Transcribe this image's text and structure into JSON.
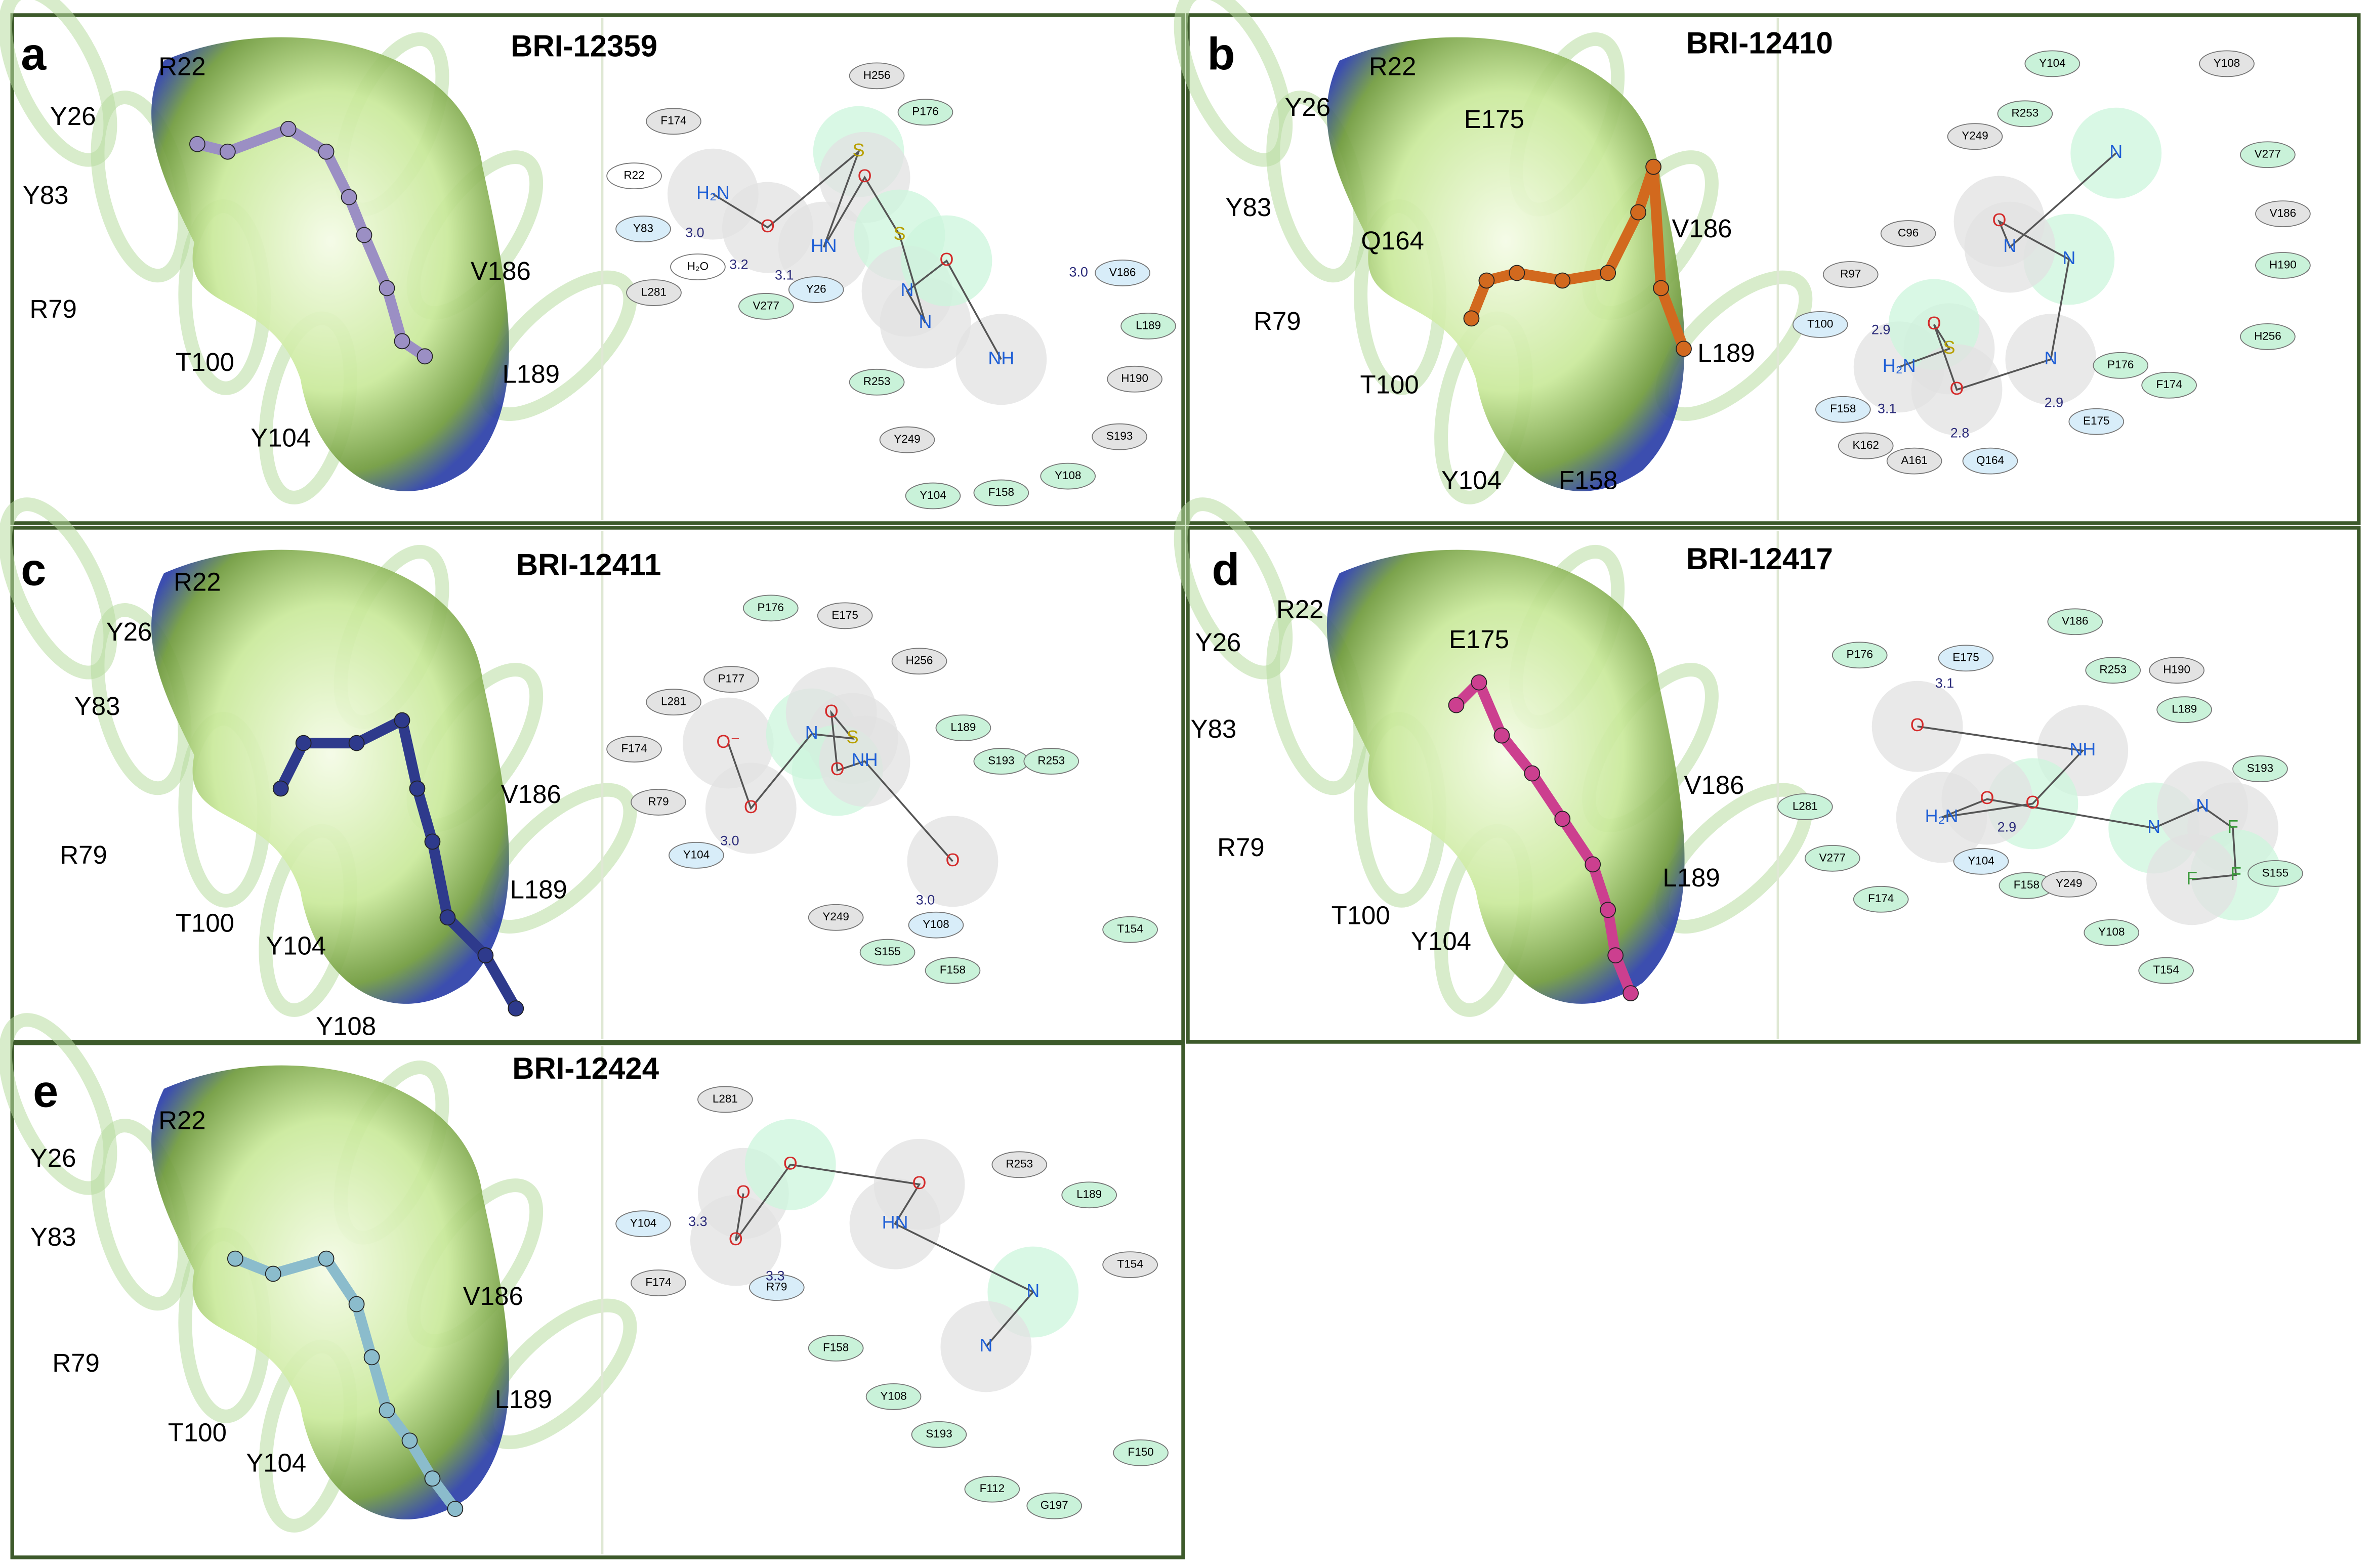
{
  "panels": [
    {
      "letter": "a",
      "title": "BRI-12359",
      "residues_3d": [
        "R22",
        "Y26",
        "Y83",
        "R79",
        "T100",
        "Y104",
        "V186",
        "L189"
      ],
      "residues_2d": [
        {
          "label": "H256",
          "color": "#e3e3e3"
        },
        {
          "label": "P176",
          "color": "#c9f2d9"
        },
        {
          "label": "F174",
          "color": "#e3e3e3"
        },
        {
          "label": "R22",
          "color": "#ffffff"
        },
        {
          "label": "Y83",
          "color": "#d8edf9"
        },
        {
          "label": "H₂O",
          "color": "#ffffff"
        },
        {
          "label": "Y26",
          "color": "#d8edf9"
        },
        {
          "label": "V277",
          "color": "#c9f2d9"
        },
        {
          "label": "L281",
          "color": "#e3e3e3"
        },
        {
          "label": "V186",
          "color": "#d8edf9"
        },
        {
          "label": "L189",
          "color": "#c9f2d9"
        },
        {
          "label": "H190",
          "color": "#e3e3e3"
        },
        {
          "label": "R253",
          "color": "#c9f2d9"
        },
        {
          "label": "Y249",
          "color": "#e3e3e3"
        },
        {
          "label": "S193",
          "color": "#e3e3e3"
        },
        {
          "label": "Y104",
          "color": "#c9f2d9"
        },
        {
          "label": "F158",
          "color": "#c9f2d9"
        },
        {
          "label": "Y108",
          "color": "#c9f2d9"
        }
      ],
      "distances": [
        "3.0",
        "3.2",
        "3.1",
        "3.0"
      ],
      "atoms": [
        "H₂N",
        "O",
        "S",
        "HN",
        "O",
        "S",
        "N",
        "N",
        "O",
        "NH"
      ]
    },
    {
      "letter": "b",
      "title": "BRI-12410",
      "residues_3d": [
        "R22",
        "Y26",
        "E175",
        "Y83",
        "Q164",
        "V186",
        "R79",
        "L189",
        "T100",
        "Y104",
        "F158"
      ],
      "residues_2d": [
        {
          "label": "Y104",
          "color": "#c9f2d9"
        },
        {
          "label": "Y108",
          "color": "#e3e3e3"
        },
        {
          "label": "R253",
          "color": "#c9f2d9"
        },
        {
          "label": "Y249",
          "color": "#e3e3e3"
        },
        {
          "label": "V277",
          "color": "#c9f2d9"
        },
        {
          "label": "V186",
          "color": "#e3e3e3"
        },
        {
          "label": "C96",
          "color": "#e3e3e3"
        },
        {
          "label": "H190",
          "color": "#c9f2d9"
        },
        {
          "label": "R97",
          "color": "#e3e3e3"
        },
        {
          "label": "T100",
          "color": "#d8edf9"
        },
        {
          "label": "H256",
          "color": "#c9f2d9"
        },
        {
          "label": "P176",
          "color": "#c9f2d9"
        },
        {
          "label": "F174",
          "color": "#c9f2d9"
        },
        {
          "label": "F158",
          "color": "#d8edf9"
        },
        {
          "label": "E175",
          "color": "#d8edf9"
        },
        {
          "label": "K162",
          "color": "#e3e3e3"
        },
        {
          "label": "A161",
          "color": "#e3e3e3"
        },
        {
          "label": "Q164",
          "color": "#d8edf9"
        }
      ],
      "distances": [
        "2.9",
        "3.1",
        "2.8",
        "2.9"
      ],
      "atoms": [
        "H₂N",
        "S",
        "O",
        "O",
        "N",
        "N",
        "O",
        "N",
        "N"
      ]
    },
    {
      "letter": "c",
      "title": "BRI-12411",
      "residues_3d": [
        "R22",
        "Y26",
        "Y83",
        "R79",
        "V186",
        "T100",
        "L189",
        "Y104",
        "Y108"
      ],
      "residues_2d": [
        {
          "label": "P176",
          "color": "#c9f2d9"
        },
        {
          "label": "E175",
          "color": "#e3e3e3"
        },
        {
          "label": "H256",
          "color": "#e3e3e3"
        },
        {
          "label": "P177",
          "color": "#e3e3e3"
        },
        {
          "label": "L281",
          "color": "#e3e3e3"
        },
        {
          "label": "F174",
          "color": "#e3e3e3"
        },
        {
          "label": "L189",
          "color": "#c9f2d9"
        },
        {
          "label": "S193",
          "color": "#c9f2d9"
        },
        {
          "label": "R253",
          "color": "#c9f2d9"
        },
        {
          "label": "R79",
          "color": "#e3e3e3"
        },
        {
          "label": "Y104",
          "color": "#d8edf9"
        },
        {
          "label": "Y249",
          "color": "#e3e3e3"
        },
        {
          "label": "Y108",
          "color": "#d8edf9"
        },
        {
          "label": "S155",
          "color": "#c9f2d9"
        },
        {
          "label": "F158",
          "color": "#c9f2d9"
        },
        {
          "label": "T154",
          "color": "#c9f2d9"
        }
      ],
      "distances": [
        "3.0",
        "3.0"
      ],
      "atoms": [
        "O⁻",
        "O",
        "N",
        "S",
        "O",
        "O",
        "NH",
        "O"
      ]
    },
    {
      "letter": "d",
      "title": "BRI-12417",
      "residues_3d": [
        "R22",
        "Y26",
        "E175",
        "Y83",
        "V186",
        "R79",
        "L189",
        "T100",
        "Y104"
      ],
      "residues_2d": [
        {
          "label": "V186",
          "color": "#c9f2d9"
        },
        {
          "label": "P176",
          "color": "#c9f2d9"
        },
        {
          "label": "E175",
          "color": "#d8edf9"
        },
        {
          "label": "R253",
          "color": "#c9f2d9"
        },
        {
          "label": "H190",
          "color": "#e3e3e3"
        },
        {
          "label": "L189",
          "color": "#c9f2d9"
        },
        {
          "label": "S193",
          "color": "#c9f2d9"
        },
        {
          "label": "L281",
          "color": "#c9f2d9"
        },
        {
          "label": "V277",
          "color": "#c9f2d9"
        },
        {
          "label": "Y104",
          "color": "#d8edf9"
        },
        {
          "label": "S155",
          "color": "#c9f2d9"
        },
        {
          "label": "F174",
          "color": "#c9f2d9"
        },
        {
          "label": "F158",
          "color": "#c9f2d9"
        },
        {
          "label": "Y249",
          "color": "#e3e3e3"
        },
        {
          "label": "Y108",
          "color": "#c9f2d9"
        },
        {
          "label": "T154",
          "color": "#c9f2d9"
        }
      ],
      "distances": [
        "3.1",
        "2.9"
      ],
      "atoms": [
        "O",
        "NH",
        "O",
        "H₂N",
        "O",
        "N",
        "N",
        "F",
        "F",
        "F"
      ]
    },
    {
      "letter": "e",
      "title": "BRI-12424",
      "residues_3d": [
        "R22",
        "Y26",
        "Y83",
        "V186",
        "R79",
        "L189",
        "T100",
        "Y104"
      ],
      "residues_2d": [
        {
          "label": "L281",
          "color": "#e3e3e3"
        },
        {
          "label": "R253",
          "color": "#e3e3e3"
        },
        {
          "label": "L189",
          "color": "#c9f2d9"
        },
        {
          "label": "Y104",
          "color": "#d8edf9"
        },
        {
          "label": "T154",
          "color": "#e3e3e3"
        },
        {
          "label": "F174",
          "color": "#e3e3e3"
        },
        {
          "label": "R79",
          "color": "#d8edf9"
        },
        {
          "label": "F158",
          "color": "#c9f2d9"
        },
        {
          "label": "Y108",
          "color": "#c9f2d9"
        },
        {
          "label": "S193",
          "color": "#c9f2d9"
        },
        {
          "label": "F150",
          "color": "#c9f2d9"
        },
        {
          "label": "F112",
          "color": "#c9f2d9"
        },
        {
          "label": "G197",
          "color": "#c9f2d9"
        }
      ],
      "distances": [
        "3.3",
        "3.3"
      ],
      "atoms": [
        "O",
        "O",
        "O",
        "O",
        "HN",
        "N",
        "N"
      ]
    }
  ]
}
